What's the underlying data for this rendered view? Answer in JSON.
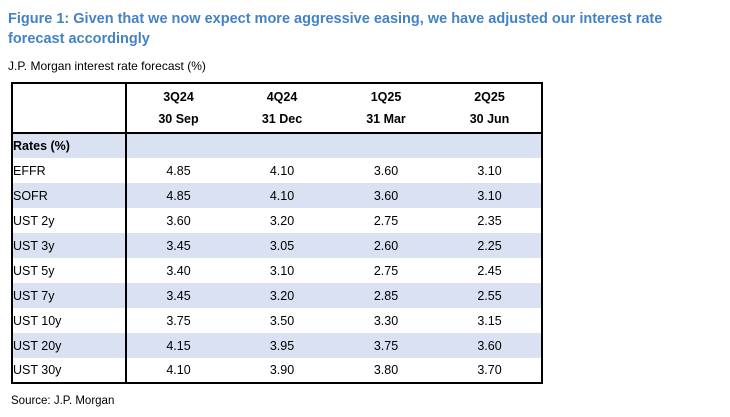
{
  "figure": {
    "title": "Figure 1: Given that we now expect more aggressive easing, we have adjusted our interest rate forecast accordingly",
    "subtitle": "J.P. Morgan interest rate forecast (%)",
    "source": "Source: J.P. Morgan"
  },
  "colors": {
    "title_blue": "#4383C4",
    "row_shade": "#D9E1F2",
    "table_border": "#000000"
  },
  "chart_data": {
    "type": "table",
    "title": "J.P. Morgan interest rate forecast (%)",
    "section_label": "Rates (%)",
    "columns": [
      {
        "quarter": "3Q24",
        "date": "30 Sep"
      },
      {
        "quarter": "4Q24",
        "date": "31 Dec"
      },
      {
        "quarter": "1Q25",
        "date": "31 Mar"
      },
      {
        "quarter": "2Q25",
        "date": "30 Jun"
      }
    ],
    "rows": [
      {
        "label": "EFFR",
        "values": [
          "4.85",
          "4.10",
          "3.60",
          "3.10"
        ]
      },
      {
        "label": "SOFR",
        "values": [
          "4.85",
          "4.10",
          "3.60",
          "3.10"
        ]
      },
      {
        "label": "UST 2y",
        "values": [
          "3.60",
          "3.20",
          "2.75",
          "2.35"
        ]
      },
      {
        "label": "UST 3y",
        "values": [
          "3.45",
          "3.05",
          "2.60",
          "2.25"
        ]
      },
      {
        "label": "UST 5y",
        "values": [
          "3.40",
          "3.10",
          "2.75",
          "2.45"
        ]
      },
      {
        "label": "UST 7y",
        "values": [
          "3.45",
          "3.20",
          "2.85",
          "2.55"
        ]
      },
      {
        "label": "UST 10y",
        "values": [
          "3.75",
          "3.50",
          "3.30",
          "3.15"
        ]
      },
      {
        "label": "UST 20y",
        "values": [
          "4.15",
          "3.95",
          "3.75",
          "3.60"
        ]
      },
      {
        "label": "UST 30y",
        "values": [
          "4.10",
          "3.90",
          "3.80",
          "3.70"
        ]
      }
    ]
  }
}
